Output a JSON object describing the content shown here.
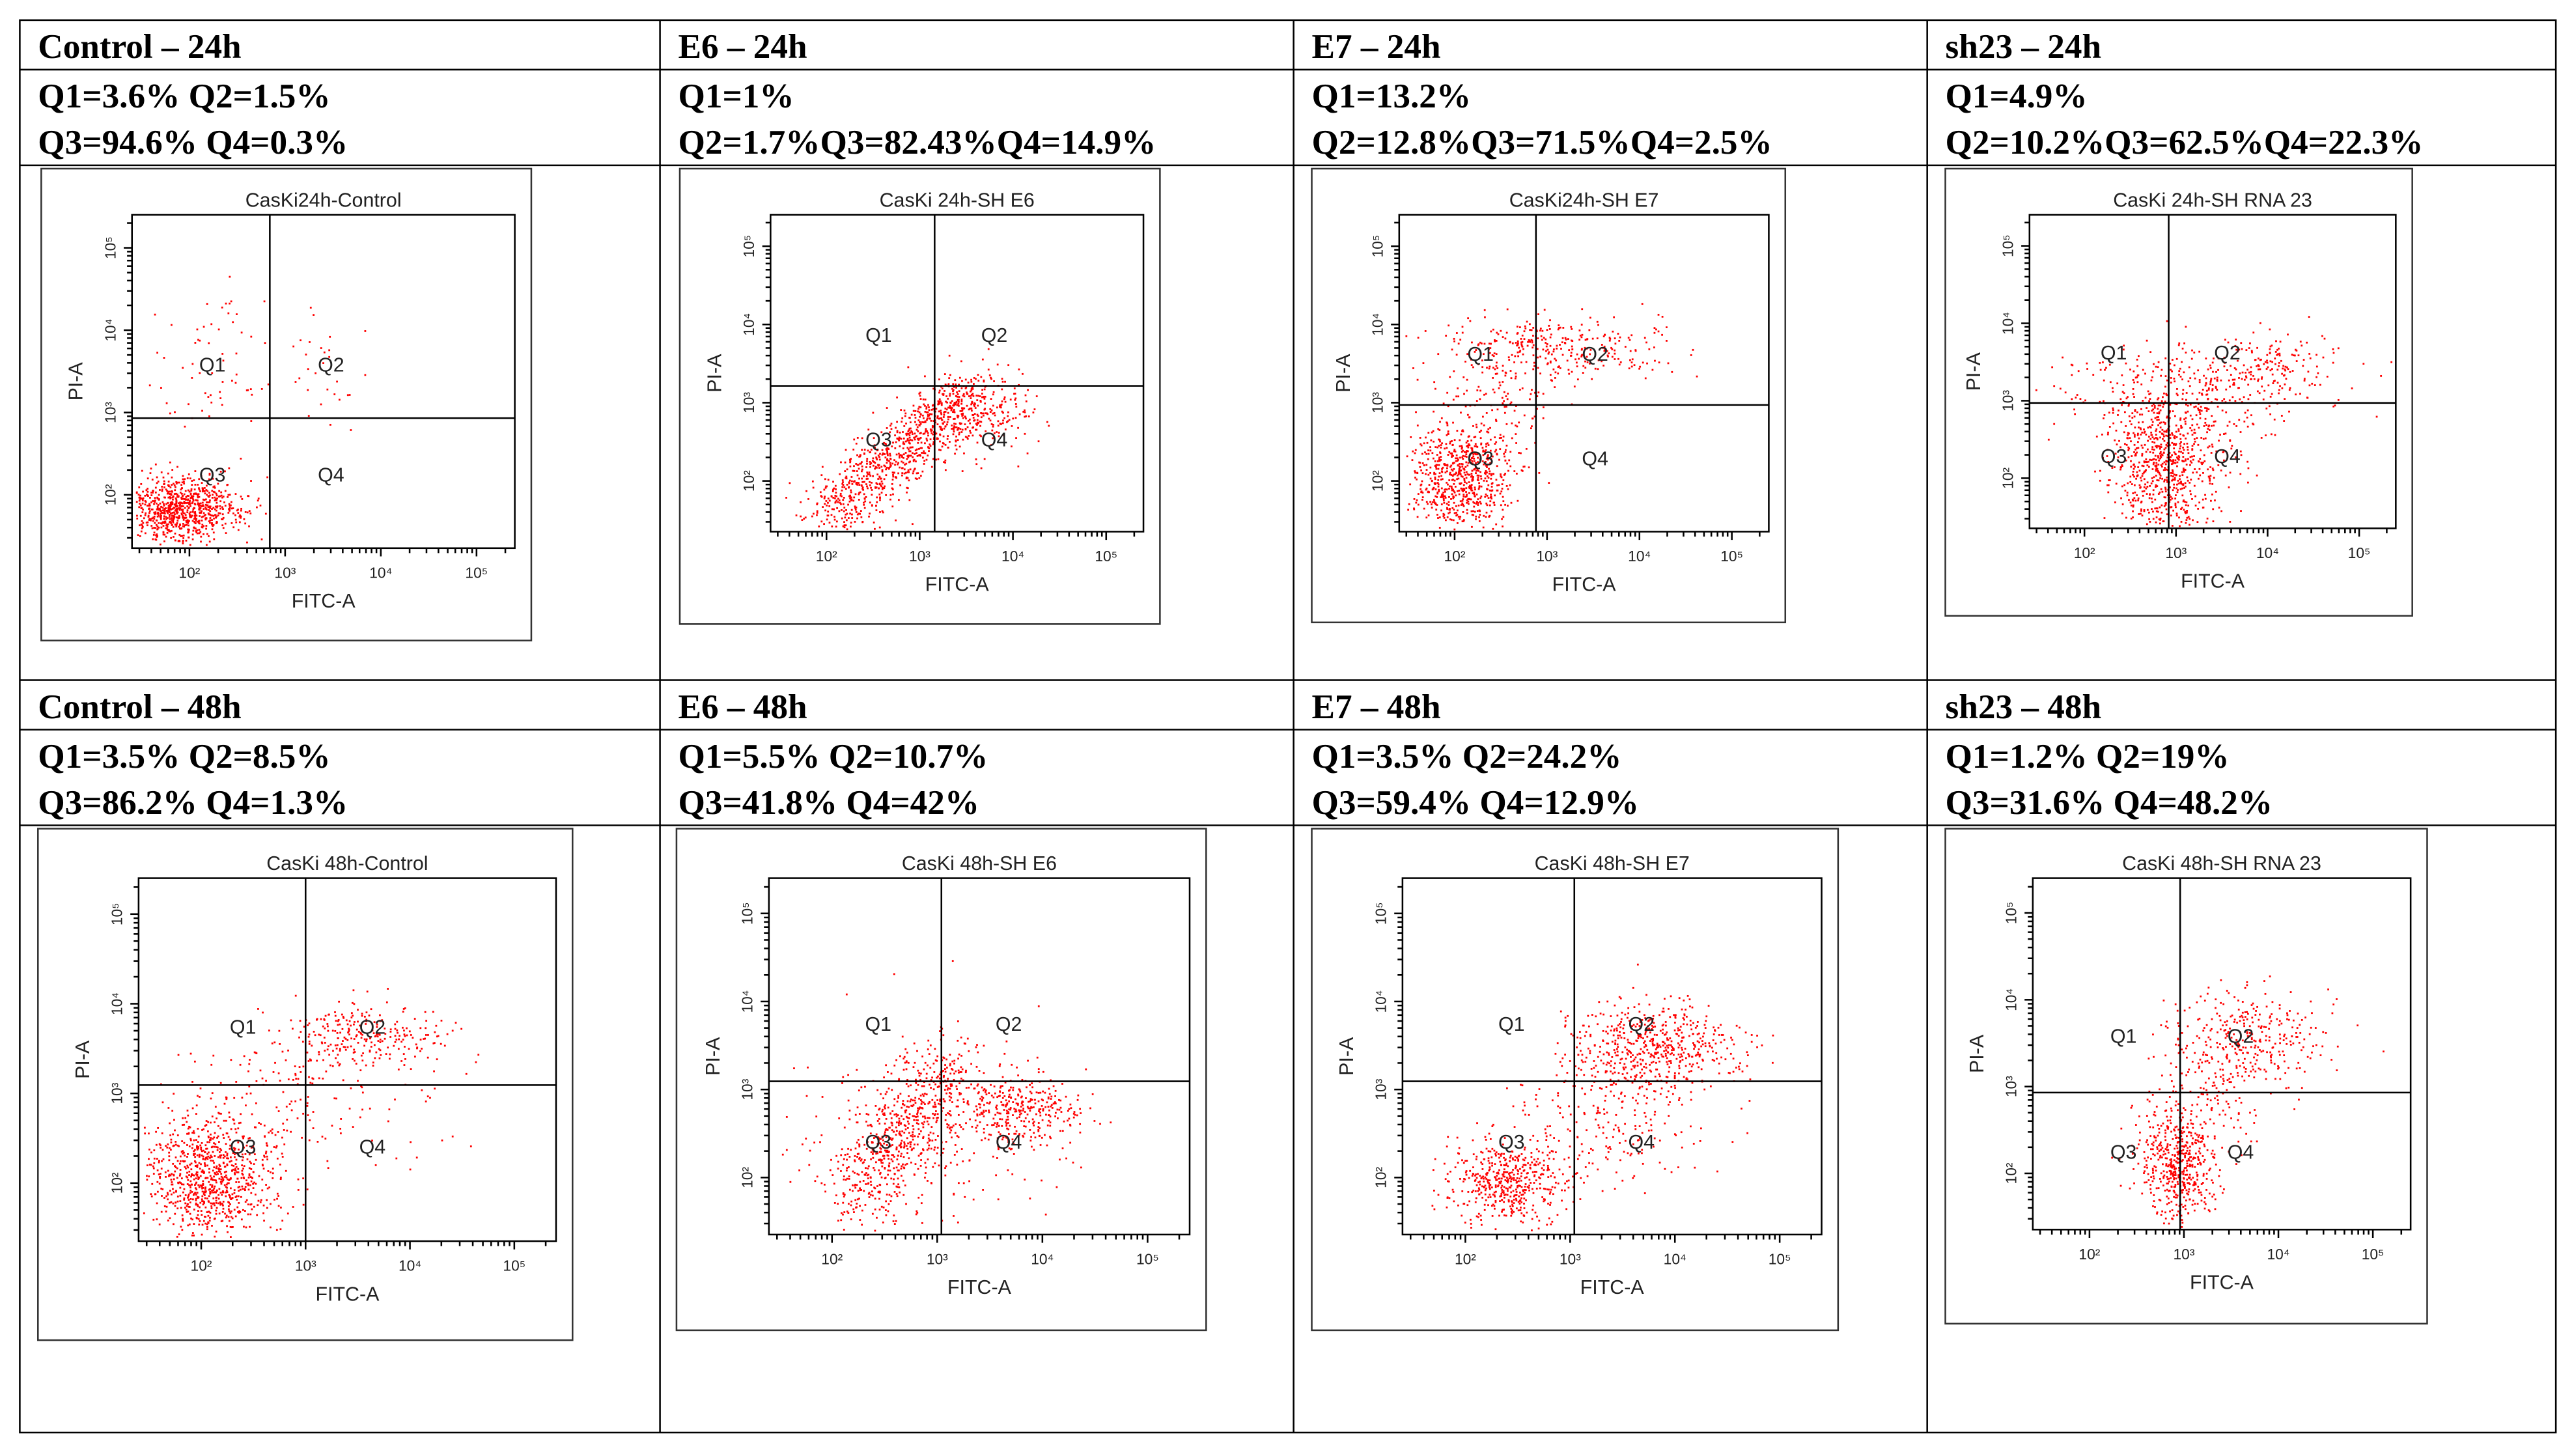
{
  "cells": [
    {
      "title": "Control – 24h",
      "stats": [
        "Q1=3.6% Q2=1.5%",
        "Q3=94.6% Q4=0.3%"
      ],
      "plot": {
        "title": "CasKi24h-Control",
        "x_label": "FITC-A",
        "y_label": "PI-A",
        "x_ticks": [
          "10²",
          "10³",
          "10⁴",
          "10⁵"
        ],
        "y_ticks": [
          "10²",
          "10³",
          "10⁴",
          "10⁵"
        ],
        "quadrants": [
          "Q1",
          "Q2",
          "Q3",
          "Q4"
        ]
      }
    },
    {
      "title": "E6 – 24h",
      "stats": [
        "Q1=1%",
        "Q2=1.7%Q3=82.43%Q4=14.9%"
      ],
      "plot": {
        "title": "CasKi 24h-SH E6",
        "x_label": "FITC-A",
        "y_label": "PI-A",
        "x_ticks": [
          "10²",
          "10³",
          "10⁴",
          "10⁵"
        ],
        "y_ticks": [
          "10²",
          "10³",
          "10⁴",
          "10⁵"
        ],
        "quadrants": [
          "Q1",
          "Q2",
          "Q3",
          "Q4"
        ]
      }
    },
    {
      "title": "E7 – 24h",
      "stats": [
        "Q1=13.2%",
        "Q2=12.8%Q3=71.5%Q4=2.5%"
      ],
      "plot": {
        "title": "CasKi24h-SH E7",
        "x_label": "FITC-A",
        "y_label": "PI-A",
        "x_ticks": [
          "10²",
          "10³",
          "10⁴",
          "10⁵"
        ],
        "y_ticks": [
          "10²",
          "10³",
          "10⁴",
          "10⁵"
        ],
        "quadrants": [
          "Q1",
          "Q2",
          "Q3",
          "Q4"
        ]
      }
    },
    {
      "title": "sh23 – 24h",
      "stats": [
        "Q1=4.9%",
        "Q2=10.2%Q3=62.5%Q4=22.3%"
      ],
      "plot": {
        "title": "CasKi 24h-SH RNA 23",
        "x_label": "FITC-A",
        "y_label": "PI-A",
        "x_ticks": [
          "10²",
          "10³",
          "10⁴",
          "10⁵"
        ],
        "y_ticks": [
          "10²",
          "10³",
          "10⁴",
          "10⁵"
        ],
        "quadrants": [
          "Q1",
          "Q2",
          "Q3",
          "Q4"
        ]
      }
    },
    {
      "title": "Control – 48h",
      "stats": [
        "Q1=3.5% Q2=8.5%",
        "Q3=86.2% Q4=1.3%"
      ],
      "plot": {
        "title": "CasKi 48h-Control",
        "x_label": "FITC-A",
        "y_label": "PI-A",
        "x_ticks": [
          "10²",
          "10³",
          "10⁴",
          "10⁵"
        ],
        "y_ticks": [
          "10²",
          "10³",
          "10⁴",
          "10⁵"
        ],
        "quadrants": [
          "Q1",
          "Q2",
          "Q3",
          "Q4"
        ]
      }
    },
    {
      "title": "E6 – 48h",
      "stats": [
        "Q1=5.5% Q2=10.7%",
        "Q3=41.8% Q4=42%"
      ],
      "plot": {
        "title": "CasKi 48h-SH E6",
        "x_label": "FITC-A",
        "y_label": "PI-A",
        "x_ticks": [
          "10²",
          "10³",
          "10⁴",
          "10⁵"
        ],
        "y_ticks": [
          "10²",
          "10³",
          "10⁴",
          "10⁵"
        ],
        "quadrants": [
          "Q1",
          "Q2",
          "Q3",
          "Q4"
        ]
      }
    },
    {
      "title": "E7 – 48h",
      "stats": [
        "Q1=3.5% Q2=24.2%",
        "Q3=59.4% Q4=12.9%"
      ],
      "plot": {
        "title": "CasKi 48h-SH E7",
        "x_label": "FITC-A",
        "y_label": "PI-A",
        "x_ticks": [
          "10²",
          "10³",
          "10⁴",
          "10⁵"
        ],
        "y_ticks": [
          "10²",
          "10³",
          "10⁴",
          "10⁵"
        ],
        "quadrants": [
          "Q1",
          "Q2",
          "Q3",
          "Q4"
        ]
      }
    },
    {
      "title": "sh23 – 48h",
      "stats": [
        "Q1=1.2% Q2=19%",
        "Q3=31.6% Q4=48.2%"
      ],
      "plot": {
        "title": "CasKi 48h-SH RNA 23",
        "x_label": "FITC-A",
        "y_label": "PI-A",
        "x_ticks": [
          "10²",
          "10³",
          "10⁴",
          "10⁵"
        ],
        "y_ticks": [
          "10²",
          "10³",
          "10⁴",
          "10⁵"
        ],
        "quadrants": [
          "Q1",
          "Q2",
          "Q3",
          "Q4"
        ]
      }
    }
  ]
}
